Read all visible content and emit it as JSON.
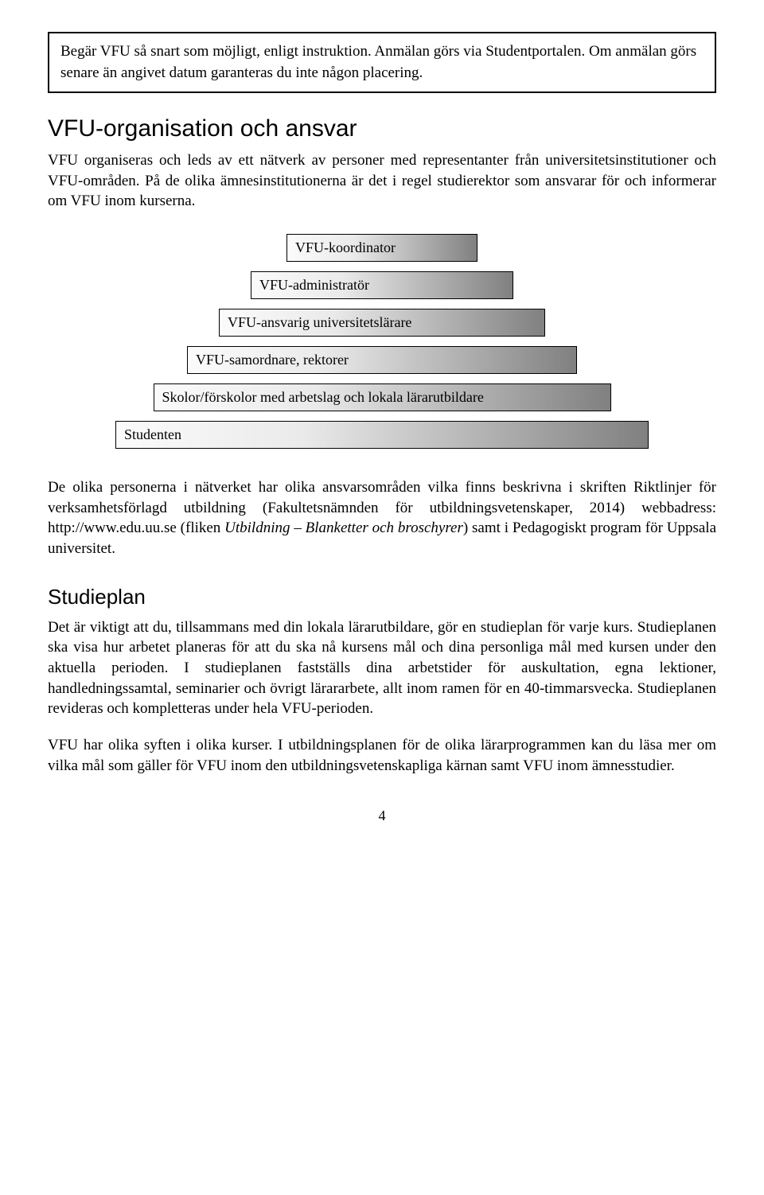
{
  "notice": {
    "text": "Begär VFU så snart som möjligt, enligt instruktion. Anmälan görs via Studentportalen. Om anmälan görs senare än angivet datum garanteras du inte någon placering."
  },
  "section1": {
    "heading": "VFU-organisation och ansvar",
    "body": "VFU organiseras och leds av ett nätverk av personer med representanter från universitetsinstitutioner och VFU-områden. På de olika ämnesinstitutionerna är det i regel studierektor som ansvarar för och informerar om VFU inom kurserna."
  },
  "pyramid": {
    "rows": [
      "VFU-koordinator",
      "VFU-administratör",
      "VFU-ansvarig universitetslärare",
      "VFU-samordnare, rektorer",
      "Skolor/förskolor med arbetslag och lokala lärarutbildare",
      "Studenten"
    ]
  },
  "section1b": {
    "body_pre": "De olika personerna i nätverket har olika ansvarsområden vilka finns beskrivna i skriften Riktlinjer för verksamhetsförlagd utbildning (Fakultetsnämnden för utbildningsvetenskaper, 2014) webbadress: http://www.edu.uu.se (fliken ",
    "body_italic": "Utbildning – Blanketter och broschyrer",
    "body_post": ") samt i Pedagogiskt program för Uppsala universitet."
  },
  "section2": {
    "heading": "Studieplan",
    "body1": "Det är viktigt att du, tillsammans med din lokala lärarutbildare, gör en studieplan för varje kurs. Studieplanen ska visa hur arbetet planeras för att du ska nå kursens mål och dina personliga mål med kursen under den aktuella perioden. I studieplanen fastställs dina arbetstider för auskultation, egna lektioner, handledningssamtal, seminarier och övrigt lärararbete, allt inom ramen för en 40-timmarsvecka. Studieplanen revideras och kompletteras under hela VFU-perioden.",
    "body2": "VFU har olika syften i olika kurser. I utbildningsplanen för de olika lärarprogrammen kan du läsa mer om vilka mål som gäller för VFU inom den utbildningsvetenskapliga kärnan samt VFU inom ämnesstudier."
  },
  "pageNumber": "4",
  "colors": {
    "border": "#000000",
    "gradient_start": "#fbfbfb",
    "gradient_mid": "#eaeaea",
    "gradient_end": "#808080",
    "background": "#ffffff",
    "text": "#000000"
  }
}
